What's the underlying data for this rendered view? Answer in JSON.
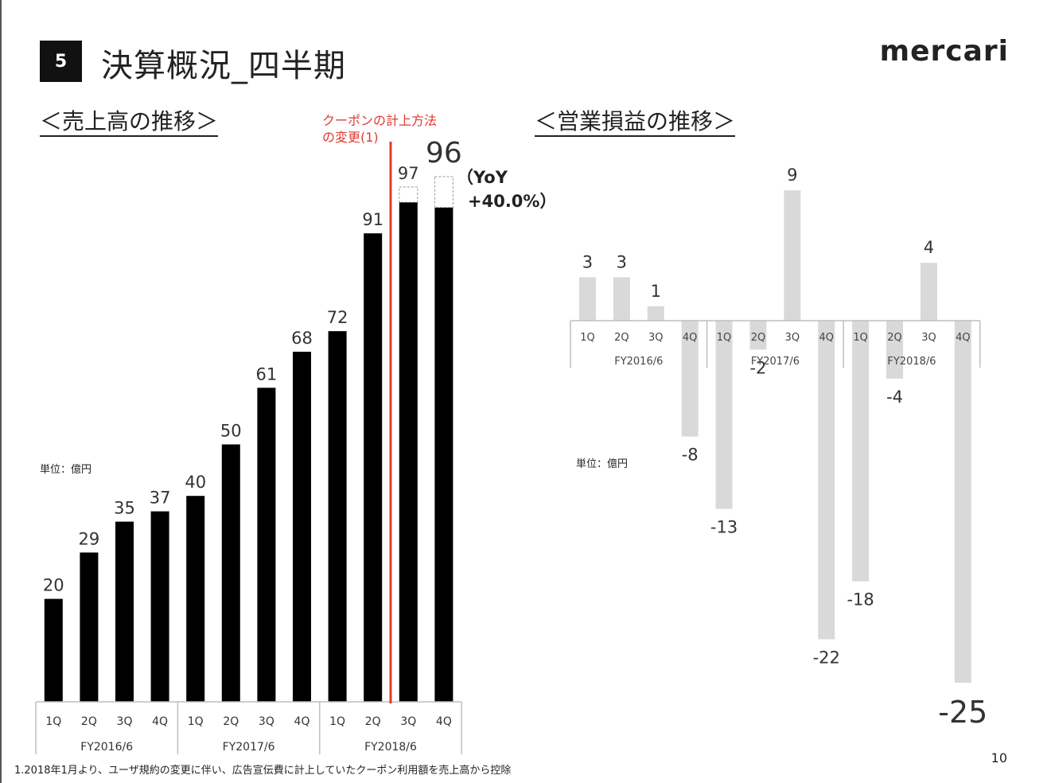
{
  "slide": {
    "section_number": "5",
    "title": "決算概況_四半期",
    "logo": "mercari",
    "footnote": "1.2018年1月より、ユーザ規約の変更に伴い、広告宣伝費に計上していたクーポン利用額を売上高から控除",
    "page_number": "10"
  },
  "chart_data": [
    {
      "type": "bar",
      "title": "＜売上高の推移＞",
      "unit_label": "単位：億円",
      "quarters": [
        "1Q",
        "2Q",
        "3Q",
        "4Q",
        "1Q",
        "2Q",
        "3Q",
        "4Q",
        "1Q",
        "2Q",
        "3Q",
        "4Q"
      ],
      "fiscal_years": [
        "FY2016/6",
        "FY2017/6",
        "FY2018/6"
      ],
      "values": [
        20,
        29,
        35,
        37,
        40,
        50,
        61,
        68,
        72,
        91,
        97,
        96
      ],
      "pre_change_values": [
        null,
        null,
        null,
        null,
        null,
        null,
        null,
        null,
        null,
        null,
        100,
        102
      ],
      "ylim": [
        0,
        110
      ],
      "annotation": {
        "text_line1": "クーポンの計上方法",
        "text_line2": "の変更(1)",
        "after_index": 9
      },
      "yoy": {
        "line1": "（YoY",
        "line2": "+40.0%）"
      },
      "colors": {
        "bar": "#000000",
        "annotation": "#e03a2f",
        "axis": "#bfbfbf"
      }
    },
    {
      "type": "bar",
      "title": "＜営業損益の推移＞",
      "unit_label": "単位：億円",
      "quarters": [
        "1Q",
        "2Q",
        "3Q",
        "4Q",
        "1Q",
        "2Q",
        "3Q",
        "4Q",
        "1Q",
        "2Q",
        "3Q",
        "4Q"
      ],
      "fiscal_years": [
        "FY2016/6",
        "FY2017/6",
        "FY2018/6"
      ],
      "values": [
        3,
        3,
        1,
        -8,
        -13,
        -2,
        9,
        -22,
        -18,
        -4,
        4,
        -25
      ],
      "ylim": [
        -25,
        9
      ],
      "colors": {
        "bar": "#d9d9d9",
        "axis": "#bfbfbf"
      }
    }
  ]
}
